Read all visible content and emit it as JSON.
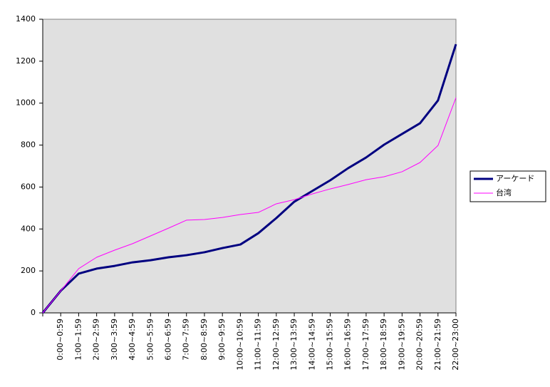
{
  "chart_data": {
    "type": "line",
    "categories": [
      null,
      "0:00~0:59",
      "1:00~1:59",
      "2:00~2:59",
      "3:00~3:59",
      "4:00~4:59",
      "5:00~5:59",
      "6:00~6:59",
      "7:00~7:59",
      "8:00~8:59",
      "9:00~9:59",
      "10:00~10:59",
      "11:00~11:59",
      "12:00~12:59",
      "13:00~13:59",
      "14:00~14:59",
      "15:00~15:59",
      "16:00~16:59",
      "17:00~17:59",
      "18:00~18:59",
      "19:00~19:59",
      "20:00~20:59",
      "21:00~21:59",
      "22:00~23:00"
    ],
    "series": [
      {
        "name": "アーケード",
        "color": "#000080",
        "width": 3,
        "values": [
          0,
          105,
          187,
          211,
          224,
          241,
          251,
          265,
          275,
          289,
          309,
          326,
          380,
          452,
          530,
          581,
          632,
          690,
          741,
          802,
          853,
          904,
          1013,
          1281
        ]
      },
      {
        "name": "台湾",
        "color": "#ff00ff",
        "width": 1,
        "values": [
          0,
          105,
          211,
          265,
          299,
          330,
          367,
          404,
          442,
          445,
          455,
          469,
          479,
          520,
          540,
          567,
          591,
          612,
          635,
          649,
          673,
          717,
          798,
          1026
        ]
      }
    ],
    "ylim": [
      0,
      1400
    ],
    "yticks": [
      0,
      200,
      400,
      600,
      800,
      1000,
      1200,
      1400
    ],
    "legend": "right",
    "plot_background": "#e0e0e0"
  }
}
